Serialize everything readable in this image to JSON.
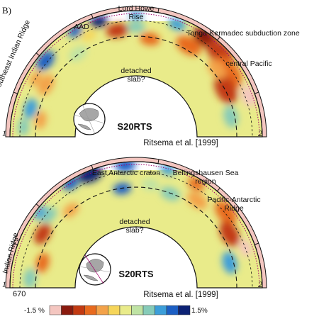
{
  "figure_label": "B)",
  "panels": [
    {
      "model": "S20RTS",
      "citation": "Ritsema et al. [1999]",
      "label_detached": "detached\nslab?",
      "endpoint_left": "1",
      "endpoint_right": "2",
      "labels": {
        "ridge": "Southeast Indian Ridge",
        "aad": "AAD",
        "lordhowe": "Lord Howe\nRise",
        "tonga": "Tonga-Kermadec subduction zone",
        "pacific": "central Pacific"
      }
    },
    {
      "model": "S20RTS",
      "citation": "Ritsema et al. [1999]",
      "label_detached": "detached\nslab?",
      "endpoint_left": "1",
      "endpoint_right": "2",
      "depth_label": "670",
      "labels": {
        "craton": "East Antarctic craton",
        "bell": "Bellingshausen Sea\nregion",
        "pac_ant": "Pacific-Antarctic\nRidge",
        "indian": "Indian Ridge"
      }
    }
  ],
  "colorbar": {
    "min_label": "-1.5 %",
    "max_label": "1.5%",
    "colors": [
      "#f4c6c0",
      "#8a1a0e",
      "#c23a12",
      "#e86a1e",
      "#f3a24a",
      "#f6d55a",
      "#e9eb8a",
      "#bfe3a4",
      "#86cbb8",
      "#3c9ed9",
      "#1c5fc4",
      "#0d2275"
    ]
  }
}
